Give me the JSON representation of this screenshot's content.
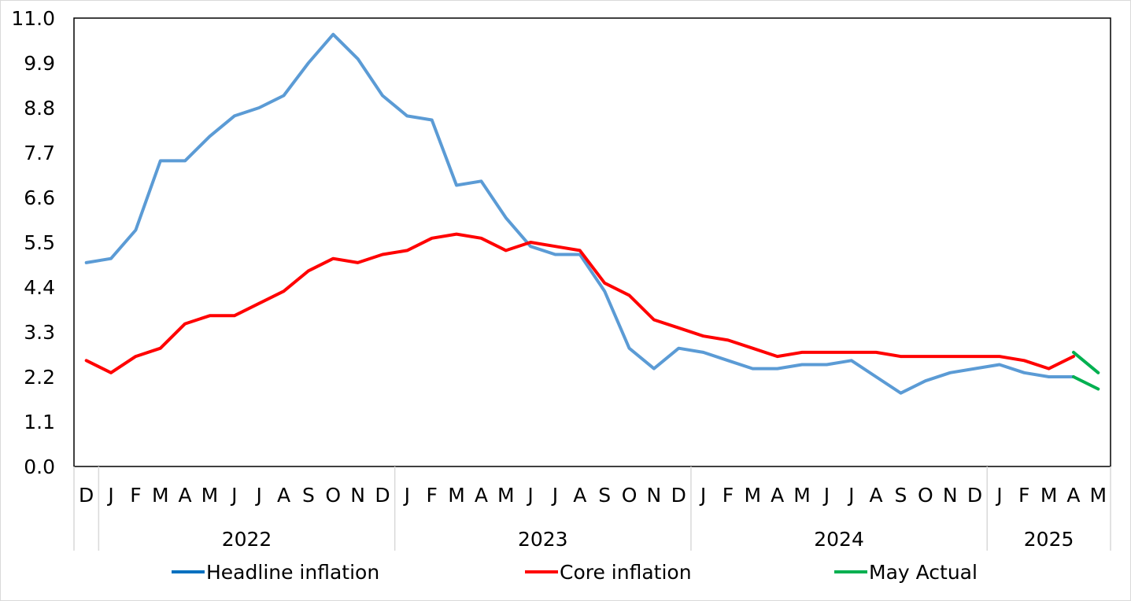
{
  "chart_data": {
    "type": "line",
    "title": "",
    "xlabel": "",
    "ylabel": "",
    "ylim": [
      0.0,
      11.0
    ],
    "yticks": [
      "0.0",
      "1.1",
      "2.2",
      "3.3",
      "4.4",
      "5.5",
      "6.6",
      "7.7",
      "8.8",
      "9.9",
      "11.0"
    ],
    "month_labels": [
      "D",
      "J",
      "F",
      "M",
      "A",
      "M",
      "J",
      "J",
      "A",
      "S",
      "O",
      "N",
      "D",
      "J",
      "F",
      "M",
      "A",
      "M",
      "J",
      "J",
      "A",
      "S",
      "O",
      "N",
      "D",
      "J",
      "F",
      "M",
      "A",
      "M",
      "J",
      "J",
      "A",
      "S",
      "O",
      "N",
      "D",
      "J",
      "F",
      "M",
      "A",
      "M"
    ],
    "year_groups": [
      {
        "label": "2022",
        "start": 1,
        "end": 12
      },
      {
        "label": "2023",
        "start": 13,
        "end": 24
      },
      {
        "label": "2024",
        "start": 25,
        "end": 36
      },
      {
        "label": "2025",
        "start": 37,
        "end": 41
      }
    ],
    "grid": false,
    "legend_position": "bottom",
    "series": [
      {
        "name": "Headline inflation",
        "color": "#5b9bd5",
        "values": [
          5.0,
          5.1,
          5.8,
          7.5,
          7.5,
          8.1,
          8.6,
          8.8,
          9.1,
          9.9,
          10.6,
          10.0,
          9.1,
          8.6,
          8.5,
          6.9,
          7.0,
          6.1,
          5.4,
          5.2,
          5.2,
          4.3,
          2.9,
          2.4,
          2.9,
          2.8,
          2.6,
          2.4,
          2.4,
          2.5,
          2.5,
          2.6,
          2.2,
          1.8,
          2.1,
          2.3,
          2.4,
          2.5,
          2.3,
          2.2,
          2.2,
          null
        ]
      },
      {
        "name": "Core inflation",
        "color": "#ff0000",
        "values": [
          2.6,
          2.3,
          2.7,
          2.9,
          3.5,
          3.7,
          3.7,
          4.0,
          4.3,
          4.8,
          5.1,
          5.0,
          5.2,
          5.3,
          5.6,
          5.7,
          5.6,
          5.3,
          5.5,
          5.4,
          5.3,
          4.5,
          4.2,
          3.6,
          3.4,
          3.2,
          3.1,
          2.9,
          2.7,
          2.8,
          2.8,
          2.8,
          2.8,
          2.7,
          2.7,
          2.7,
          2.7,
          2.7,
          2.6,
          2.4,
          2.7,
          null
        ]
      },
      {
        "name": "May Actual",
        "color": "#00b050",
        "segments": [
          {
            "x": [
              40,
              41
            ],
            "values": [
              2.8,
              2.3
            ]
          },
          {
            "x": [
              40,
              41
            ],
            "values": [
              2.2,
              1.9
            ]
          }
        ]
      }
    ]
  },
  "legend": [
    {
      "label": "Headline inflation",
      "color": "#0070c0"
    },
    {
      "label": "Core inflation",
      "color": "#ff0000"
    },
    {
      "label": "May Actual",
      "color": "#00b050"
    }
  ]
}
